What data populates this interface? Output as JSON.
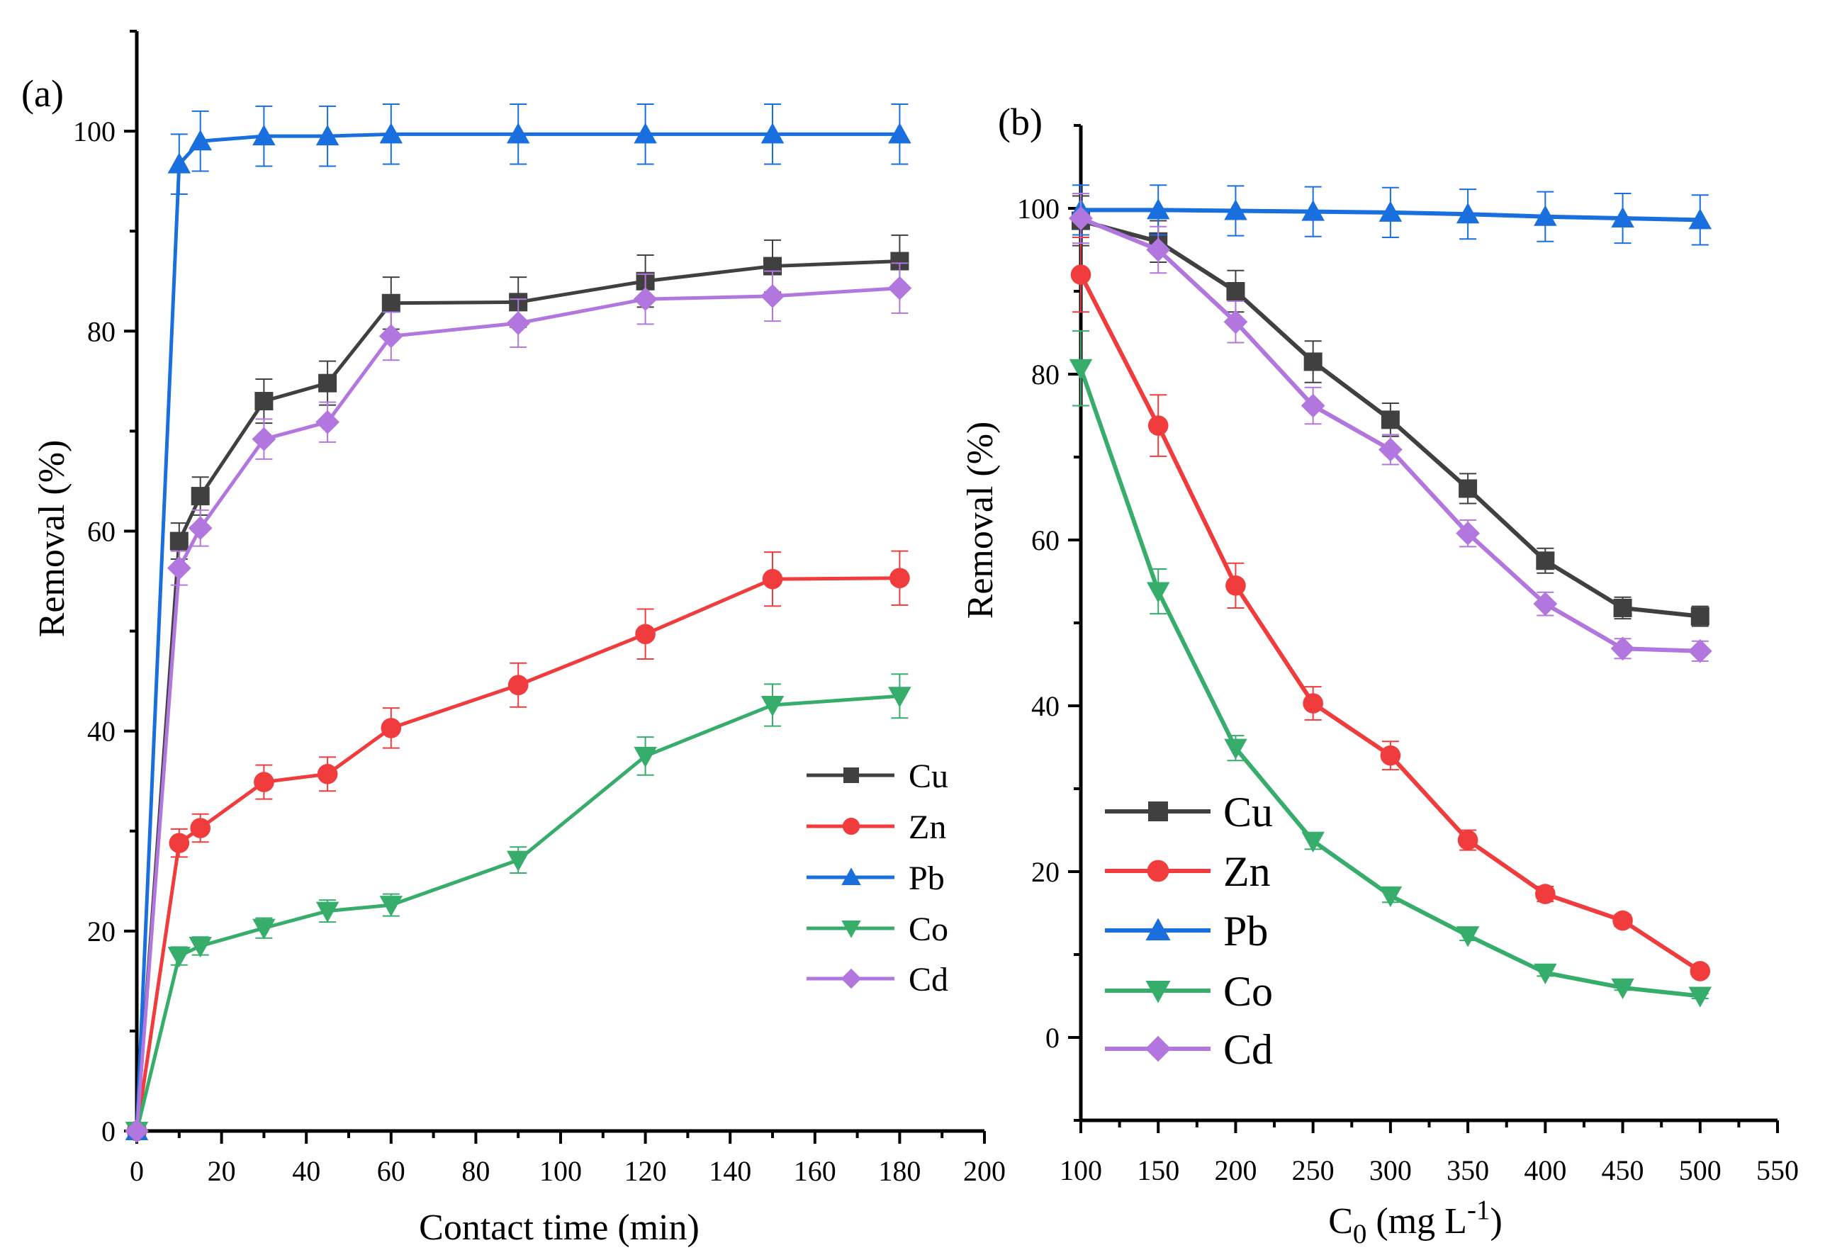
{
  "colors": {
    "Cu": "#404040",
    "Zn": "#f03c3c",
    "Pb": "#1a6fdf",
    "Co": "#37ad6b",
    "Cd": "#b177de"
  },
  "chart_data": [
    {
      "type": "line",
      "panel_label": "(a)",
      "xlabel": "Contact time (min)",
      "ylabel": "Removal (%)",
      "xlim": [
        0,
        200
      ],
      "ylim": [
        0,
        110
      ],
      "xticks": [
        0,
        20,
        40,
        60,
        80,
        100,
        120,
        140,
        160,
        180,
        200
      ],
      "yticks": [
        0,
        20,
        40,
        60,
        80,
        100
      ],
      "legend": "right-middle",
      "x": [
        0,
        10,
        15,
        30,
        45,
        60,
        90,
        120,
        150,
        180
      ],
      "series": [
        {
          "name": "Cu",
          "marker": "square",
          "values": [
            0,
            59,
            63.5,
            73,
            74.8,
            82.8,
            82.9,
            85,
            86.5,
            87
          ],
          "err": [
            0,
            1.8,
            1.9,
            2.2,
            2.2,
            2.6,
            2.5,
            2.6,
            2.6,
            2.6
          ]
        },
        {
          "name": "Zn",
          "marker": "circle",
          "values": [
            0,
            28.8,
            30.3,
            34.9,
            35.7,
            40.3,
            44.6,
            49.7,
            55.2,
            55.3
          ],
          "err": [
            0,
            1.4,
            1.4,
            1.7,
            1.7,
            2,
            2.2,
            2.5,
            2.7,
            2.7
          ]
        },
        {
          "name": "Pb",
          "marker": "triangle-up",
          "values": [
            0,
            96.7,
            99,
            99.5,
            99.5,
            99.7,
            99.7,
            99.7,
            99.7,
            99.7
          ],
          "err": [
            0,
            3,
            3,
            3,
            3,
            3,
            3,
            3,
            3,
            3
          ]
        },
        {
          "name": "Co",
          "marker": "triangle-down",
          "values": [
            0,
            17.5,
            18.5,
            20.3,
            22,
            22.6,
            27.1,
            37.5,
            42.6,
            43.5
          ],
          "err": [
            0,
            0.9,
            0.9,
            1,
            1.1,
            1.1,
            1.3,
            1.9,
            2.1,
            2.2
          ]
        },
        {
          "name": "Cd",
          "marker": "diamond",
          "values": [
            0,
            56.3,
            60.3,
            69.2,
            70.9,
            79.5,
            80.8,
            83.2,
            83.5,
            84.3
          ],
          "err": [
            0,
            1.7,
            1.8,
            2,
            2,
            2.4,
            2.4,
            2.5,
            2.5,
            2.5
          ]
        }
      ]
    },
    {
      "type": "line",
      "panel_label": "(b)",
      "xlabel": "C0 (mg L-1)",
      "xlabel_parts": {
        "main": "C",
        "sub": "0",
        "units": " (mg L",
        "sup": "-1",
        "close": ")"
      },
      "ylabel": "Removal (%)",
      "xlim": [
        100,
        550
      ],
      "ylim": [
        -10,
        110
      ],
      "xticks": [
        100,
        150,
        200,
        250,
        300,
        350,
        400,
        450,
        500,
        550
      ],
      "yticks": [
        0,
        20,
        40,
        60,
        80,
        100
      ],
      "legend": "bottom-left",
      "x": [
        100,
        150,
        200,
        250,
        300,
        350,
        400,
        450,
        500
      ],
      "series": [
        {
          "name": "Cu",
          "marker": "square",
          "values": [
            98.5,
            96,
            90,
            81.5,
            74.5,
            66.2,
            57.5,
            51.8,
            50.8
          ],
          "err": [
            3,
            2.5,
            2.5,
            2.5,
            2,
            1.8,
            1.5,
            1.3,
            1.2
          ]
        },
        {
          "name": "Zn",
          "marker": "circle",
          "values": [
            92,
            73.8,
            54.5,
            40.3,
            34,
            23.8,
            17.3,
            14.1,
            8
          ],
          "err": [
            4.5,
            3.7,
            2.7,
            2,
            1.7,
            1.2,
            0.9,
            0.7,
            0.5
          ]
        },
        {
          "name": "Pb",
          "marker": "triangle-up",
          "values": [
            99.8,
            99.8,
            99.7,
            99.6,
            99.5,
            99.3,
            99,
            98.8,
            98.6
          ],
          "err": [
            3,
            3,
            3,
            3,
            3,
            3,
            3,
            3,
            3
          ]
        },
        {
          "name": "Co",
          "marker": "triangle-down",
          "values": [
            80.7,
            53.8,
            34.9,
            23.7,
            17.1,
            12.3,
            7.8,
            6,
            5
          ],
          "err": [
            4.5,
            2.7,
            1.5,
            1,
            0.8,
            0.6,
            0.4,
            0.3,
            0.3
          ]
        },
        {
          "name": "Cd",
          "marker": "diamond",
          "values": [
            98.8,
            95,
            86.3,
            76.2,
            70.9,
            60.8,
            52.3,
            46.9,
            46.6
          ],
          "err": [
            3,
            2.8,
            2.5,
            2.2,
            1.8,
            1.6,
            1.4,
            1.2,
            1.2
          ]
        }
      ]
    }
  ]
}
